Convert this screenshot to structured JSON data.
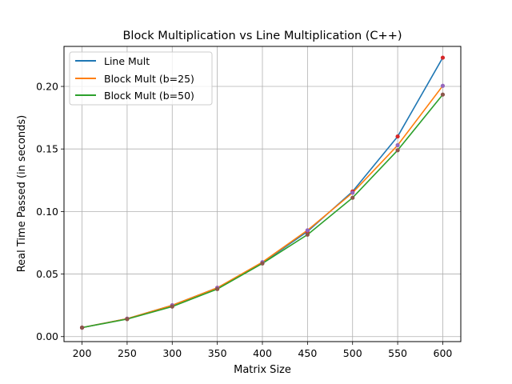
{
  "chart_data": {
    "type": "line",
    "title": "Block Multiplication vs Line Multiplication (C++)",
    "xlabel": "Matrix Size",
    "ylabel": "Real Time Passed (in seconds)",
    "x": [
      200,
      250,
      300,
      350,
      400,
      450,
      500,
      550,
      600
    ],
    "xlim": [
      180,
      620
    ],
    "ylim": [
      -0.004,
      0.232
    ],
    "xticks": [
      200,
      250,
      300,
      350,
      400,
      450,
      500,
      550,
      600
    ],
    "xtick_labels": [
      "200",
      "250",
      "300",
      "350",
      "400",
      "450",
      "500",
      "550",
      "600"
    ],
    "yticks": [
      0.0,
      0.05,
      0.1,
      0.15,
      0.2
    ],
    "ytick_labels": [
      "0.00",
      "0.05",
      "0.10",
      "0.15",
      "0.20"
    ],
    "grid": true,
    "legend_position": "top-left",
    "series": [
      {
        "name": "Line Mult",
        "color": "#1f77b4",
        "marker_color": "#d62728",
        "values": [
          0.0072,
          0.0143,
          0.025,
          0.039,
          0.059,
          0.084,
          0.116,
          0.16,
          0.223
        ]
      },
      {
        "name": "Block Mult (b=25)",
        "color": "#ff7f0e",
        "marker_color": "#9467bd",
        "values": [
          0.0072,
          0.0143,
          0.025,
          0.039,
          0.0595,
          0.085,
          0.115,
          0.153,
          0.2005
        ]
      },
      {
        "name": "Block Mult (b=50)",
        "color": "#2ca02c",
        "marker_color": "#8c564b",
        "values": [
          0.0072,
          0.014,
          0.024,
          0.038,
          0.0585,
          0.0815,
          0.111,
          0.149,
          0.1935
        ]
      }
    ]
  }
}
